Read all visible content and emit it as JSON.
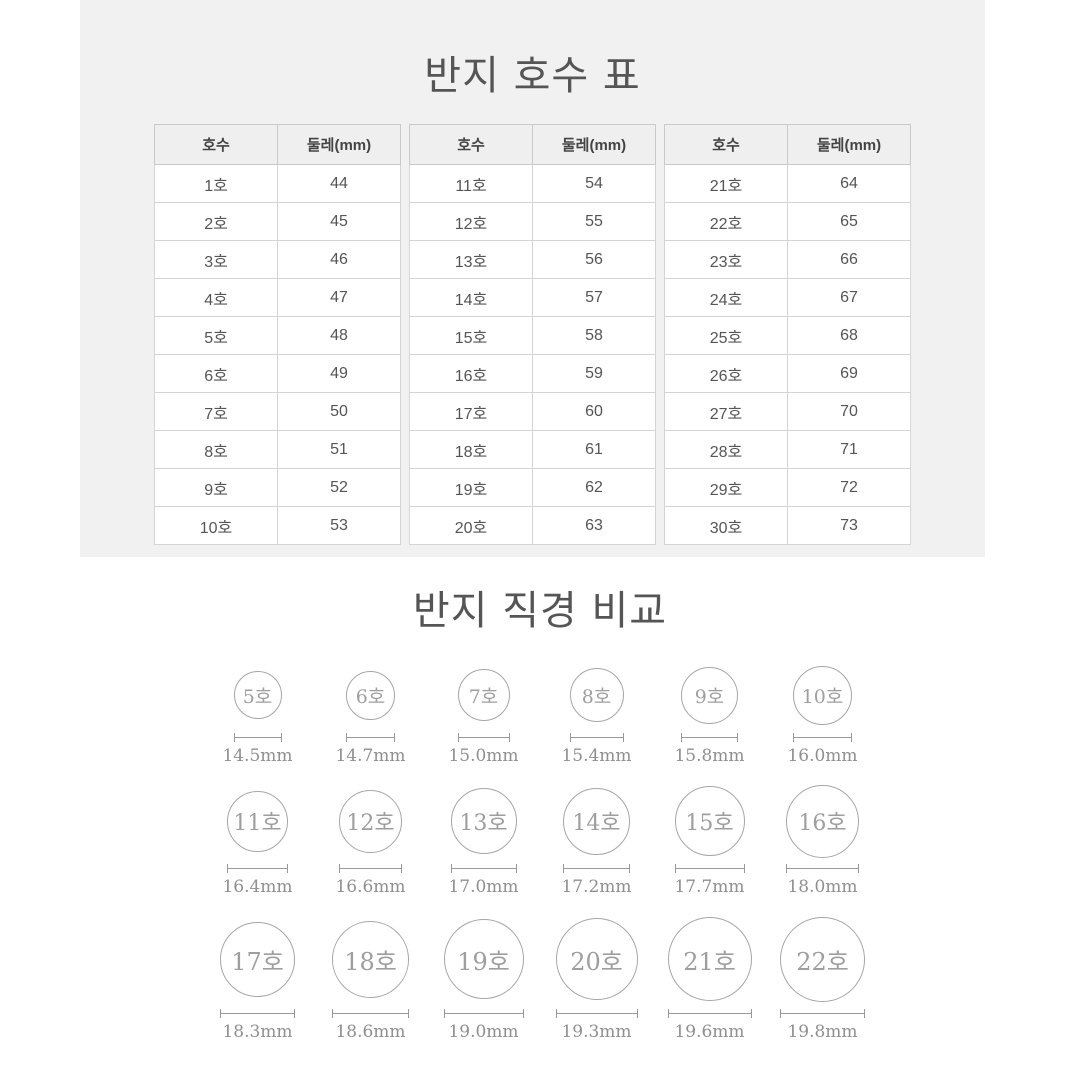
{
  "titles": {
    "size_table": "반지 호수 표",
    "diameter_comparison": "반지 직경 비교"
  },
  "size_tables": {
    "columns": [
      "호수",
      "둘레(mm)"
    ],
    "tables": [
      {
        "rows": [
          [
            "1호",
            "44"
          ],
          [
            "2호",
            "45"
          ],
          [
            "3호",
            "46"
          ],
          [
            "4호",
            "47"
          ],
          [
            "5호",
            "48"
          ],
          [
            "6호",
            "49"
          ],
          [
            "7호",
            "50"
          ],
          [
            "8호",
            "51"
          ],
          [
            "9호",
            "52"
          ],
          [
            "10호",
            "53"
          ]
        ]
      },
      {
        "rows": [
          [
            "11호",
            "54"
          ],
          [
            "12호",
            "55"
          ],
          [
            "13호",
            "56"
          ],
          [
            "14호",
            "57"
          ],
          [
            "15호",
            "58"
          ],
          [
            "16호",
            "59"
          ],
          [
            "17호",
            "60"
          ],
          [
            "18호",
            "61"
          ],
          [
            "19호",
            "62"
          ],
          [
            "20호",
            "63"
          ]
        ]
      },
      {
        "rows": [
          [
            "21호",
            "64"
          ],
          [
            "22호",
            "65"
          ],
          [
            "23호",
            "66"
          ],
          [
            "24호",
            "67"
          ],
          [
            "25호",
            "68"
          ],
          [
            "26호",
            "69"
          ],
          [
            "27호",
            "70"
          ],
          [
            "28호",
            "71"
          ],
          [
            "29호",
            "72"
          ],
          [
            "30호",
            "73"
          ]
        ]
      }
    ]
  },
  "diameter_comparison": {
    "rings": [
      {
        "label": "5호",
        "diameter_mm": 14.5,
        "diameter_label": "14.5mm"
      },
      {
        "label": "6호",
        "diameter_mm": 14.7,
        "diameter_label": "14.7mm"
      },
      {
        "label": "7호",
        "diameter_mm": 15.0,
        "diameter_label": "15.0mm"
      },
      {
        "label": "8호",
        "diameter_mm": 15.4,
        "diameter_label": "15.4mm"
      },
      {
        "label": "9호",
        "diameter_mm": 15.8,
        "diameter_label": "15.8mm"
      },
      {
        "label": "10호",
        "diameter_mm": 16.0,
        "diameter_label": "16.0mm"
      },
      {
        "label": "11호",
        "diameter_mm": 16.4,
        "diameter_label": "16.4mm"
      },
      {
        "label": "12호",
        "diameter_mm": 16.6,
        "diameter_label": "16.6mm"
      },
      {
        "label": "13호",
        "diameter_mm": 17.0,
        "diameter_label": "17.0mm"
      },
      {
        "label": "14호",
        "diameter_mm": 17.2,
        "diameter_label": "17.2mm"
      },
      {
        "label": "15호",
        "diameter_mm": 17.7,
        "diameter_label": "17.7mm"
      },
      {
        "label": "16호",
        "diameter_mm": 18.0,
        "diameter_label": "18.0mm"
      },
      {
        "label": "17호",
        "diameter_mm": 18.3,
        "diameter_label": "18.3mm"
      },
      {
        "label": "18호",
        "diameter_mm": 18.6,
        "diameter_label": "18.6mm"
      },
      {
        "label": "19호",
        "diameter_mm": 19.0,
        "diameter_label": "19.0mm"
      },
      {
        "label": "20호",
        "diameter_mm": 19.3,
        "diameter_label": "19.3mm"
      },
      {
        "label": "21호",
        "diameter_mm": 19.6,
        "diameter_label": "19.6mm"
      },
      {
        "label": "22호",
        "diameter_mm": 19.8,
        "diameter_label": "19.8mm"
      }
    ]
  },
  "colors": {
    "panel_bg": "#f1f1f2",
    "table_header_bg": "#efefef",
    "table_border": "#cccccc",
    "title_text": "#555555",
    "muted_text": "#8f8f8f",
    "circle_border": "#a6a6a6"
  }
}
